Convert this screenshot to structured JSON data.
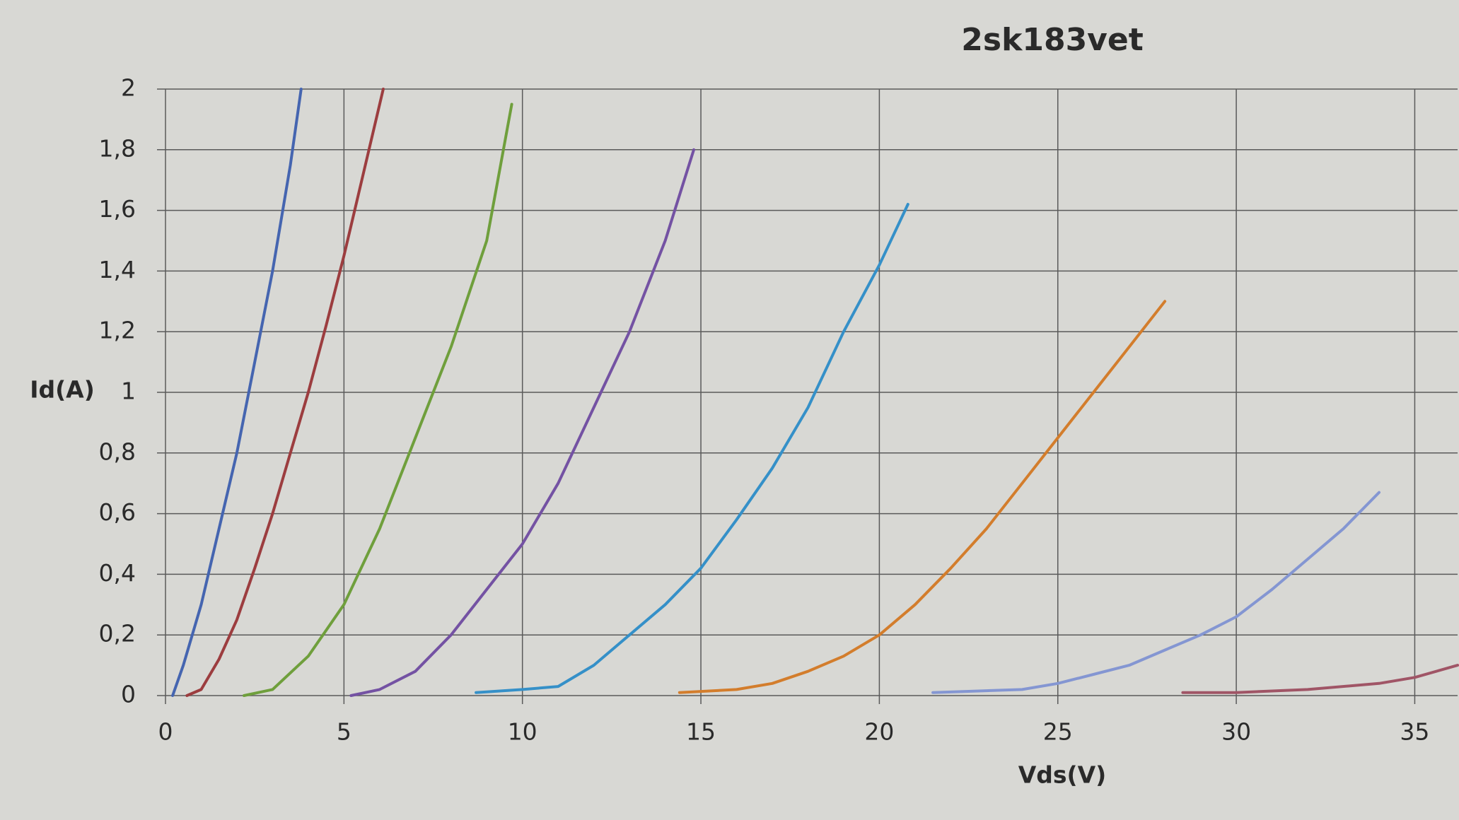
{
  "chart_data": {
    "type": "line",
    "title": "2sk183vet",
    "x_label": "Vds(V)",
    "y_label": "Id(A)",
    "xlim": [
      0,
      36.2
    ],
    "ylim": [
      0,
      2
    ],
    "xticks": [
      0,
      5,
      10,
      15,
      20,
      25,
      30,
      35
    ],
    "yticks": [
      0,
      {
        "value": 0.2,
        "label": "0,2"
      },
      {
        "value": 0.4,
        "label": "0,4"
      },
      {
        "value": 0.6,
        "label": "0,6"
      },
      {
        "value": 0.8,
        "label": "0,8"
      },
      1,
      {
        "value": 1.2,
        "label": "1,2"
      },
      {
        "value": 1.4,
        "label": "1,4"
      },
      {
        "value": 1.6,
        "label": "1,6"
      },
      {
        "value": 1.8,
        "label": "1,8"
      },
      2
    ],
    "grid": true,
    "series": [
      {
        "color": "#4565b0",
        "x": [
          0.2,
          0.5,
          1,
          1.5,
          2,
          2.5,
          3,
          3.5,
          3.8
        ],
        "values": [
          0,
          0.1,
          0.3,
          0.55,
          0.8,
          1.1,
          1.4,
          1.75,
          2
        ]
      },
      {
        "color": "#9c3d3f",
        "x": [
          0.6,
          1,
          1.5,
          2,
          2.5,
          3,
          3.5,
          4,
          4.5,
          5,
          5.5,
          6.1
        ],
        "values": [
          0,
          0.02,
          0.12,
          0.25,
          0.42,
          0.6,
          0.8,
          1,
          1.22,
          1.45,
          1.7,
          2
        ]
      },
      {
        "color": "#6f9f3c",
        "x": [
          2.2,
          3,
          4,
          5,
          6,
          7,
          8,
          9,
          9.7
        ],
        "values": [
          0,
          0.02,
          0.13,
          0.3,
          0.55,
          0.85,
          1.15,
          1.5,
          1.95
        ]
      },
      {
        "color": "#7452a3",
        "x": [
          5.2,
          6,
          7,
          8,
          9,
          10,
          11,
          12,
          13,
          14,
          14.8
        ],
        "values": [
          0,
          0.02,
          0.08,
          0.2,
          0.35,
          0.5,
          0.7,
          0.95,
          1.2,
          1.5,
          1.8
        ]
      },
      {
        "color": "#3590c8",
        "x": [
          8.7,
          10,
          11,
          12,
          13,
          14,
          15,
          16,
          17,
          18,
          19,
          20,
          20.8
        ],
        "values": [
          0.01,
          0.02,
          0.03,
          0.1,
          0.2,
          0.3,
          0.42,
          0.58,
          0.75,
          0.95,
          1.2,
          1.42,
          1.62
        ]
      },
      {
        "color": "#d37d2c",
        "x": [
          14.4,
          16,
          17,
          18,
          19,
          20,
          21,
          22,
          23,
          24,
          25,
          26,
          27,
          28
        ],
        "values": [
          0.01,
          0.02,
          0.04,
          0.08,
          0.13,
          0.2,
          0.3,
          0.42,
          0.55,
          0.7,
          0.85,
          1,
          1.15,
          1.3
        ]
      },
      {
        "color": "#8496d2",
        "x": [
          21.5,
          24,
          25,
          26,
          27,
          28,
          29,
          30,
          31,
          32,
          33,
          34
        ],
        "values": [
          0.01,
          0.02,
          0.04,
          0.07,
          0.1,
          0.15,
          0.2,
          0.26,
          0.35,
          0.45,
          0.55,
          0.67
        ]
      },
      {
        "color": "#a05566",
        "x": [
          28.5,
          30,
          32,
          34,
          35,
          36.2
        ],
        "values": [
          0.01,
          0.01,
          0.02,
          0.04,
          0.06,
          0.1
        ]
      }
    ]
  }
}
